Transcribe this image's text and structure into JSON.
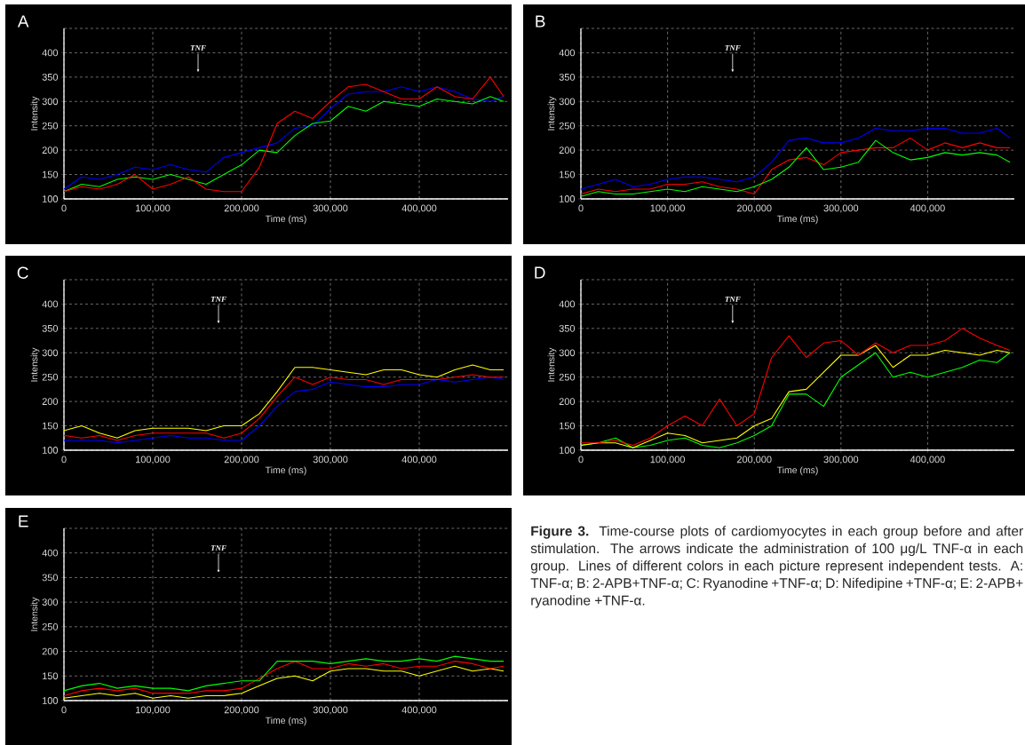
{
  "chart_data": [
    {
      "type": "line",
      "title": "A",
      "xlabel": "Time (ms)",
      "ylabel": "Intensity",
      "grid": true,
      "xlim": [
        0,
        500000
      ],
      "ylim": [
        100,
        450
      ],
      "xticks": [
        0,
        {
          "value": 100000,
          "label": "100,000"
        },
        {
          "value": 200000,
          "label": "200,000"
        },
        {
          "value": 300000,
          "label": "300,000"
        },
        {
          "value": 400000,
          "label": "400,000"
        }
      ],
      "yticks": [
        100,
        150,
        200,
        250,
        300,
        350,
        400
      ],
      "annotations": [
        {
          "text": "TNF",
          "x": 151000,
          "y": 360
        }
      ],
      "x": [
        0,
        20000,
        40000,
        60000,
        80000,
        100000,
        120000,
        140000,
        160000,
        180000,
        200000,
        220000,
        240000,
        260000,
        280000,
        300000,
        320000,
        340000,
        360000,
        380000,
        400000,
        420000,
        440000,
        460000,
        480000,
        495000
      ],
      "series": [
        {
          "color": "#0000ff",
          "values": [
            120,
            145,
            140,
            150,
            165,
            160,
            170,
            160,
            155,
            185,
            195,
            205,
            215,
            245,
            250,
            285,
            315,
            320,
            320,
            330,
            320,
            330,
            320,
            305,
            300,
            310
          ]
        },
        {
          "color": "#00ff00",
          "values": [
            115,
            130,
            125,
            140,
            145,
            140,
            150,
            140,
            130,
            150,
            170,
            200,
            195,
            230,
            255,
            260,
            290,
            280,
            300,
            295,
            290,
            305,
            300,
            295,
            310,
            300
          ]
        },
        {
          "color": "#ff0000",
          "values": [
            115,
            125,
            120,
            130,
            150,
            120,
            130,
            145,
            120,
            115,
            115,
            165,
            255,
            280,
            265,
            300,
            330,
            335,
            320,
            305,
            305,
            330,
            310,
            305,
            350,
            310
          ]
        }
      ]
    },
    {
      "type": "line",
      "title": "B",
      "xlabel": "Time (ms)",
      "ylabel": "Intensity",
      "grid": true,
      "xlim": [
        0,
        500000
      ],
      "ylim": [
        100,
        450
      ],
      "xticks": [
        0,
        {
          "value": 100000,
          "label": "100,000"
        },
        {
          "value": 200000,
          "label": "200,000"
        },
        {
          "value": 300000,
          "label": "300,000"
        },
        {
          "value": 400000,
          "label": "400,000"
        }
      ],
      "yticks": [
        100,
        150,
        200,
        250,
        300,
        350,
        400
      ],
      "annotations": [
        {
          "text": "TNF",
          "x": 175000,
          "y": 360
        }
      ],
      "x": [
        0,
        20000,
        40000,
        60000,
        80000,
        100000,
        120000,
        140000,
        160000,
        180000,
        200000,
        220000,
        240000,
        260000,
        280000,
        300000,
        320000,
        340000,
        360000,
        380000,
        400000,
        420000,
        440000,
        460000,
        480000,
        495000
      ],
      "series": [
        {
          "color": "#0000ff",
          "values": [
            120,
            130,
            140,
            125,
            130,
            140,
            145,
            145,
            140,
            135,
            145,
            175,
            220,
            225,
            215,
            215,
            225,
            245,
            240,
            240,
            245,
            245,
            235,
            235,
            245,
            225
          ]
        },
        {
          "color": "#ff0000",
          "values": [
            110,
            120,
            115,
            120,
            120,
            130,
            130,
            135,
            125,
            120,
            110,
            160,
            180,
            185,
            170,
            195,
            200,
            205,
            205,
            225,
            200,
            215,
            205,
            215,
            205,
            205
          ]
        },
        {
          "color": "#00ff00",
          "values": [
            105,
            115,
            110,
            110,
            115,
            120,
            115,
            125,
            120,
            115,
            125,
            140,
            165,
            205,
            160,
            165,
            175,
            220,
            195,
            180,
            185,
            195,
            190,
            195,
            190,
            175
          ]
        }
      ]
    },
    {
      "type": "line",
      "title": "C",
      "xlabel": "Time (ms)",
      "ylabel": "Intensity",
      "grid": true,
      "xlim": [
        0,
        500000
      ],
      "ylim": [
        100,
        450
      ],
      "xticks": [
        0,
        {
          "value": 100000,
          "label": "100,000"
        },
        {
          "value": 200000,
          "label": "200,000"
        },
        {
          "value": 300000,
          "label": "300,000"
        },
        {
          "value": 400000,
          "label": "400,000"
        }
      ],
      "yticks": [
        100,
        150,
        200,
        250,
        300,
        350,
        400
      ],
      "annotations": [
        {
          "text": "TNF",
          "x": 174000,
          "y": 360
        }
      ],
      "x": [
        0,
        20000,
        40000,
        60000,
        80000,
        100000,
        120000,
        140000,
        160000,
        180000,
        200000,
        220000,
        240000,
        260000,
        280000,
        300000,
        320000,
        340000,
        360000,
        380000,
        400000,
        420000,
        440000,
        460000,
        480000,
        495000
      ],
      "series": [
        {
          "color": "#0000ff",
          "values": [
            120,
            120,
            120,
            115,
            120,
            125,
            130,
            125,
            125,
            120,
            120,
            150,
            190,
            220,
            225,
            240,
            235,
            230,
            230,
            235,
            235,
            245,
            240,
            245,
            250,
            245
          ]
        },
        {
          "color": "#ff0000",
          "values": [
            130,
            125,
            130,
            120,
            130,
            135,
            135,
            135,
            135,
            125,
            135,
            165,
            210,
            250,
            235,
            250,
            245,
            245,
            235,
            245,
            245,
            245,
            250,
            255,
            250,
            250
          ]
        },
        {
          "color": "#ffff00",
          "values": [
            140,
            150,
            135,
            125,
            140,
            145,
            145,
            145,
            140,
            150,
            150,
            175,
            220,
            270,
            270,
            265,
            260,
            255,
            265,
            265,
            255,
            250,
            265,
            275,
            265,
            265
          ]
        }
      ]
    },
    {
      "type": "line",
      "title": "D",
      "xlabel": "Time (ms)",
      "ylabel": "Intensity",
      "grid": true,
      "xlim": [
        0,
        500000
      ],
      "ylim": [
        100,
        450
      ],
      "xticks": [
        0,
        {
          "value": 100000,
          "label": "100,000"
        },
        {
          "value": 200000,
          "label": "200,000"
        },
        {
          "value": 300000,
          "label": "300,000"
        },
        {
          "value": 400000,
          "label": "400,000"
        }
      ],
      "yticks": [
        100,
        150,
        200,
        250,
        300,
        350,
        400
      ],
      "annotations": [
        {
          "text": "TNF",
          "x": 175000,
          "y": 360
        }
      ],
      "x": [
        0,
        20000,
        40000,
        60000,
        80000,
        100000,
        120000,
        140000,
        160000,
        180000,
        200000,
        220000,
        240000,
        260000,
        280000,
        300000,
        320000,
        340000,
        360000,
        380000,
        400000,
        420000,
        440000,
        460000,
        480000,
        495000
      ],
      "series": [
        {
          "color": "#00ff00",
          "values": [
            110,
            115,
            125,
            105,
            110,
            120,
            125,
            110,
            105,
            115,
            130,
            150,
            215,
            215,
            190,
            250,
            275,
            300,
            250,
            260,
            250,
            260,
            270,
            285,
            280,
            300
          ]
        },
        {
          "color": "#ffff00",
          "values": [
            110,
            115,
            115,
            105,
            120,
            135,
            130,
            115,
            120,
            125,
            150,
            165,
            220,
            225,
            260,
            295,
            295,
            315,
            270,
            295,
            295,
            305,
            300,
            295,
            305,
            300
          ]
        },
        {
          "color": "#ff0000",
          "values": [
            115,
            115,
            120,
            110,
            125,
            150,
            170,
            150,
            205,
            150,
            175,
            290,
            335,
            290,
            320,
            325,
            295,
            320,
            300,
            315,
            315,
            325,
            350,
            330,
            315,
            305
          ]
        }
      ]
    },
    {
      "type": "line",
      "title": "E",
      "xlabel": "Time (ms)",
      "ylabel": "Intensity",
      "grid": true,
      "xlim": [
        0,
        500000
      ],
      "ylim": [
        100,
        450
      ],
      "xticks": [
        0,
        {
          "value": 100000,
          "label": "100,000"
        },
        {
          "value": 200000,
          "label": "200,000"
        },
        {
          "value": 300000,
          "label": "300,000"
        },
        {
          "value": 400000,
          "label": "400,000"
        }
      ],
      "yticks": [
        100,
        150,
        200,
        250,
        300,
        350,
        400
      ],
      "annotations": [
        {
          "text": "TNF",
          "x": 174000,
          "y": 360
        }
      ],
      "x": [
        0,
        20000,
        40000,
        60000,
        80000,
        100000,
        120000,
        140000,
        160000,
        180000,
        200000,
        220000,
        240000,
        260000,
        280000,
        300000,
        320000,
        340000,
        360000,
        380000,
        400000,
        420000,
        440000,
        460000,
        480000,
        495000
      ],
      "series": [
        {
          "color": "#ffff00",
          "values": [
            105,
            110,
            115,
            110,
            115,
            105,
            110,
            105,
            110,
            110,
            115,
            130,
            145,
            150,
            140,
            160,
            165,
            165,
            160,
            160,
            150,
            160,
            170,
            160,
            165,
            160
          ]
        },
        {
          "color": "#ff0000",
          "values": [
            110,
            120,
            125,
            120,
            125,
            115,
            115,
            115,
            120,
            120,
            125,
            145,
            165,
            180,
            165,
            165,
            175,
            170,
            175,
            165,
            170,
            170,
            180,
            175,
            165,
            170
          ]
        },
        {
          "color": "#00ff00",
          "values": [
            120,
            130,
            135,
            125,
            130,
            125,
            125,
            120,
            130,
            135,
            140,
            140,
            180,
            180,
            180,
            175,
            180,
            185,
            180,
            180,
            185,
            180,
            190,
            185,
            180,
            180
          ]
        }
      ]
    },
    {
      "type": "other",
      "annotations": [
        "**Figure 3.** Time-course plots of cardiomyocytes in each group before and after stimulation. The arrows indicate the administration of 100 μg/L TNF-α in each group. Lines of different colors in each picture represent independent tests. A: TNF-α; B: 2-APB+TNF-α; C: Ryanodine +TNF-α; D: Nifedipine +TNF-α; E: 2-APB+ ryanodine +TNF-α."
      ]
    }
  ]
}
